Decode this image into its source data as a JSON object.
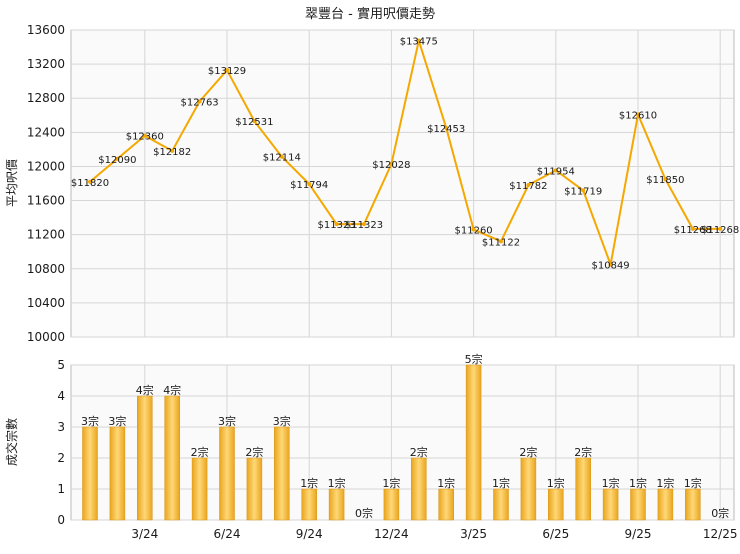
{
  "colors": {
    "line": "#f5a800",
    "bar": "#f2b233",
    "bar_highlight": "#ffd877",
    "grid": "#d6d6d6",
    "plot_bg": "#fafafa",
    "text": "#1a1a1a"
  },
  "chart_data": [
    {
      "type": "line",
      "title": "翠豐台 - 實用呎價走勢",
      "ylabel": "平均呎價",
      "ylim": [
        10000,
        13600
      ],
      "yticks": [
        "10000",
        "10400",
        "10800",
        "11200",
        "11600",
        "12000",
        "12400",
        "12800",
        "13200",
        "13600"
      ],
      "xticks": [
        {
          "index": 2,
          "label": "3/24"
        },
        {
          "index": 5,
          "label": "6/24"
        },
        {
          "index": 8,
          "label": "9/24"
        },
        {
          "index": 11,
          "label": "12/24"
        },
        {
          "index": 14,
          "label": "3/25"
        },
        {
          "index": 17,
          "label": "6/25"
        },
        {
          "index": 20,
          "label": "9/25"
        },
        {
          "index": 23,
          "label": "12/25"
        }
      ],
      "grid": true,
      "points": [
        {
          "index": 0,
          "value": 11820,
          "label": "$11820"
        },
        {
          "index": 1,
          "value": 12090,
          "label": "$12090"
        },
        {
          "index": 2,
          "value": 12360,
          "label": "$12360"
        },
        {
          "index": 3,
          "value": 12182,
          "label": "$12182"
        },
        {
          "index": 4,
          "value": 12763,
          "label": "$12763"
        },
        {
          "index": 5,
          "value": 13129,
          "label": "$13129"
        },
        {
          "index": 6,
          "value": 12531,
          "label": "$12531"
        },
        {
          "index": 7,
          "value": 12114,
          "label": "$12114"
        },
        {
          "index": 8,
          "value": 11794,
          "label": "$11794"
        },
        {
          "index": 9,
          "value": 11323,
          "label": "$11323"
        },
        {
          "index": 10,
          "value": 11323,
          "label": "$11323"
        },
        {
          "index": 11,
          "value": 12028,
          "label": "$12028"
        },
        {
          "index": 12,
          "value": 13475,
          "label": "$13475"
        },
        {
          "index": 13,
          "value": 12453,
          "label": "$12453"
        },
        {
          "index": 14,
          "value": 11260,
          "label": "$11260"
        },
        {
          "index": 15,
          "value": 11122,
          "label": "$11122"
        },
        {
          "index": 16,
          "value": 11782,
          "label": "$11782"
        },
        {
          "index": 17,
          "value": 11954,
          "label": "$11954"
        },
        {
          "index": 18,
          "value": 11719,
          "label": "$11719"
        },
        {
          "index": 19,
          "value": 10849,
          "label": "$10849"
        },
        {
          "index": 20,
          "value": 12610,
          "label": "$12610"
        },
        {
          "index": 21,
          "value": 11850,
          "label": "$11850"
        },
        {
          "index": 22,
          "value": 11268,
          "label": "$11268"
        },
        {
          "index": 23,
          "value": 11268,
          "label": "$11268"
        }
      ]
    },
    {
      "type": "bar",
      "ylabel": "成交宗數",
      "ylim": [
        0,
        5
      ],
      "yticks": [
        "0",
        "1",
        "2",
        "3",
        "4",
        "5"
      ],
      "xticks": [
        {
          "index": 2,
          "label": "3/24"
        },
        {
          "index": 5,
          "label": "6/24"
        },
        {
          "index": 8,
          "label": "9/24"
        },
        {
          "index": 11,
          "label": "12/24"
        },
        {
          "index": 14,
          "label": "3/25"
        },
        {
          "index": 17,
          "label": "6/25"
        },
        {
          "index": 20,
          "label": "9/25"
        },
        {
          "index": 23,
          "label": "12/25"
        }
      ],
      "grid": true,
      "bars": [
        {
          "index": 0,
          "value": 3,
          "label": "3宗"
        },
        {
          "index": 1,
          "value": 3,
          "label": "3宗"
        },
        {
          "index": 2,
          "value": 4,
          "label": "4宗"
        },
        {
          "index": 3,
          "value": 4,
          "label": "4宗"
        },
        {
          "index": 4,
          "value": 2,
          "label": "2宗"
        },
        {
          "index": 5,
          "value": 3,
          "label": "3宗"
        },
        {
          "index": 6,
          "value": 2,
          "label": "2宗"
        },
        {
          "index": 7,
          "value": 3,
          "label": "3宗"
        },
        {
          "index": 8,
          "value": 1,
          "label": "1宗"
        },
        {
          "index": 9,
          "value": 1,
          "label": "1宗"
        },
        {
          "index": 10,
          "value": 0,
          "label": "0宗"
        },
        {
          "index": 11,
          "value": 1,
          "label": "1宗"
        },
        {
          "index": 12,
          "value": 2,
          "label": "2宗"
        },
        {
          "index": 13,
          "value": 1,
          "label": "1宗"
        },
        {
          "index": 14,
          "value": 5,
          "label": "5宗"
        },
        {
          "index": 15,
          "value": 1,
          "label": "1宗"
        },
        {
          "index": 16,
          "value": 2,
          "label": "2宗"
        },
        {
          "index": 17,
          "value": 1,
          "label": "1宗"
        },
        {
          "index": 18,
          "value": 2,
          "label": "2宗"
        },
        {
          "index": 19,
          "value": 1,
          "label": "1宗"
        },
        {
          "index": 20,
          "value": 1,
          "label": "1宗"
        },
        {
          "index": 21,
          "value": 1,
          "label": "1宗"
        },
        {
          "index": 22,
          "value": 1,
          "label": "1宗"
        },
        {
          "index": 23,
          "value": 0,
          "label": "0宗"
        }
      ]
    }
  ]
}
